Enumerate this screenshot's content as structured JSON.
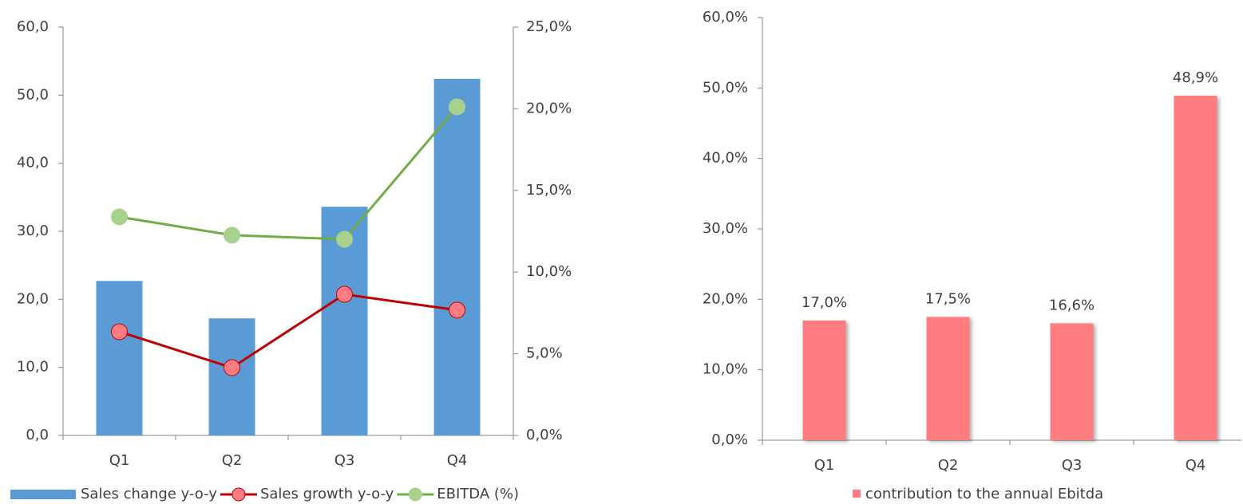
{
  "chart_data": [
    {
      "type": "bar_line",
      "categories": [
        "Q1",
        "Q2",
        "Q3",
        "Q4"
      ],
      "series": [
        {
          "name": "Sales change y-o-y",
          "type": "bar",
          "color": "#5b9bd5",
          "values": [
            22.7,
            17.2,
            33.6,
            52.4
          ]
        },
        {
          "name": "Sales growth y-o-y",
          "type": "line",
          "axis": "y2",
          "color": "#c00000",
          "marker_color": "#ff7c80",
          "values": [
            6.35,
            4.15,
            8.64,
            7.67
          ]
        },
        {
          "name": "EBITDA (%)",
          "type": "line",
          "axis": "y2",
          "color": "#70ad47",
          "marker_color": "#a9d18e",
          "values": [
            13.38,
            12.26,
            12.01,
            20.12
          ]
        }
      ],
      "ylim": [
        0,
        60
      ],
      "yticks": [
        {
          "value": 0,
          "label": "0,0"
        },
        {
          "value": 10,
          "label": "10,0"
        },
        {
          "value": 20,
          "label": "20,0"
        },
        {
          "value": 30,
          "label": "30,0"
        },
        {
          "value": 40,
          "label": "40,0"
        },
        {
          "value": 50,
          "label": "50,0"
        },
        {
          "value": 60,
          "label": "60,0"
        }
      ],
      "y2lim": [
        0,
        25
      ],
      "y2ticks": [
        {
          "value": 0,
          "label": "0,0%"
        },
        {
          "value": 5,
          "label": "5,0%"
        },
        {
          "value": 10,
          "label": "10,0%"
        },
        {
          "value": 15,
          "label": "15,0%"
        },
        {
          "value": 20,
          "label": "20,0%"
        },
        {
          "value": 25,
          "label": "25,0%"
        }
      ],
      "legend": "bottom"
    },
    {
      "type": "bar",
      "categories": [
        "Q1",
        "Q2",
        "Q3",
        "Q4"
      ],
      "series": [
        {
          "name": "contribution to the annual Ebitda",
          "type": "bar",
          "color": "#ff7c80",
          "values": [
            17.0,
            17.5,
            16.6,
            48.9
          ],
          "value_labels": [
            "17,0%",
            "17,5%",
            "16,6%",
            "48,9%"
          ]
        }
      ],
      "ylim": [
        0,
        60
      ],
      "yticks": [
        {
          "value": 0,
          "label": "0,0%"
        },
        {
          "value": 10,
          "label": "10,0%"
        },
        {
          "value": 20,
          "label": "20,0%"
        },
        {
          "value": 30,
          "label": "30,0%"
        },
        {
          "value": 40,
          "label": "40,0%"
        },
        {
          "value": 50,
          "label": "50,0%"
        },
        {
          "value": 60,
          "label": "60,0%"
        }
      ],
      "legend": "bottom"
    }
  ]
}
